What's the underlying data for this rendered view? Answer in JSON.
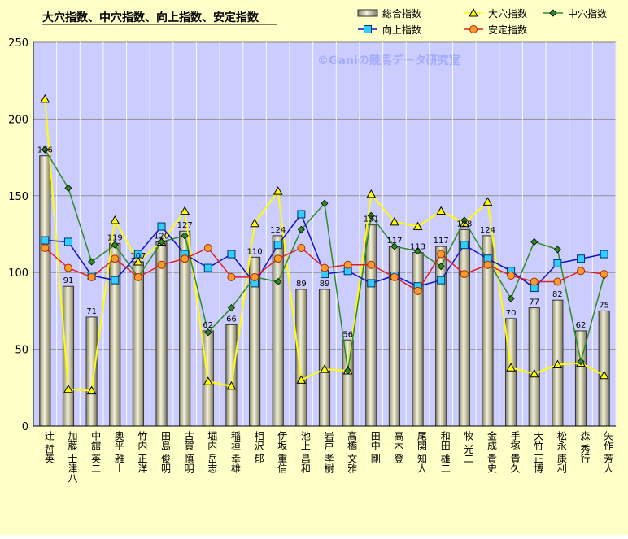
{
  "chart_data": {
    "type": "bar",
    "title": "大穴指数、中穴指数、向上指数、安定指数",
    "watermark": "©Ganiの競馬データ研究室",
    "ylim": [
      0,
      250
    ],
    "yticks": [
      0,
      50,
      100,
      150,
      200,
      250
    ],
    "grid": true,
    "legend_position": "top-right",
    "categories": [
      "辻 哲英",
      "加藤 士津八",
      "中舘 英二",
      "奥平 雅士",
      "竹内 正洋",
      "田島 俊明",
      "古賀 慎明",
      "堀内 岳志",
      "稲垣 幸雄",
      "相沢 郁",
      "伊坂 重信",
      "池上 昌和",
      "岩戸 孝樹",
      "高橋 文雅",
      "田中 剛",
      "高木 登",
      "尾関 知人",
      "和田 雄二",
      "牧 光二",
      "金成 貴史",
      "手塚 貴久",
      "大竹 正博",
      "松永 康利",
      "森 秀行",
      "矢作 芳人"
    ],
    "series": [
      {
        "name": "総合指数",
        "kind": "bar",
        "color": "#d8d4a8",
        "values": [
          176,
          91,
          71,
          119,
          107,
          120,
          127,
          62,
          66,
          110,
          124,
          89,
          89,
          56,
          131,
          117,
          113,
          117,
          128,
          124,
          70,
          77,
          82,
          62,
          75
        ]
      },
      {
        "name": "大穴指数",
        "kind": "line",
        "color": "#ffff00",
        "marker": "triangle",
        "values": [
          213,
          24,
          23,
          134,
          107,
          120,
          140,
          29,
          26,
          132,
          153,
          30,
          37,
          36,
          151,
          133,
          130,
          140,
          132,
          146,
          38,
          34,
          40,
          41,
          33
        ]
      },
      {
        "name": "中穴指数",
        "kind": "line",
        "color": "#2e8b22",
        "marker": "diamond",
        "values": [
          180,
          155,
          107,
          118,
          97,
          120,
          124,
          61,
          77,
          97,
          94,
          128,
          145,
          36,
          137,
          117,
          114,
          104,
          134,
          108,
          83,
          120,
          115,
          42,
          98
        ]
      },
      {
        "name": "向上指数",
        "kind": "line",
        "color": "#1010c8",
        "marker": "square",
        "values": [
          121,
          120,
          98,
          95,
          112,
          130,
          112,
          103,
          112,
          93,
          118,
          138,
          99,
          101,
          93,
          98,
          91,
          95,
          118,
          109,
          101,
          90,
          106,
          109,
          112
        ]
      },
      {
        "name": "安定指数",
        "kind": "line",
        "color": "#e02020",
        "marker": "circle",
        "values": [
          116,
          103,
          97,
          109,
          97,
          105,
          109,
          116,
          97,
          97,
          109,
          116,
          103,
          105,
          105,
          97,
          88,
          112,
          99,
          105,
          98,
          94,
          94,
          101,
          99
        ]
      }
    ]
  }
}
